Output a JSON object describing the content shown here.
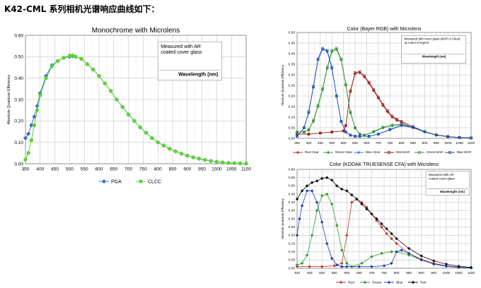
{
  "heading": "K42-CML 系列相机光谱响应曲线如下：",
  "chart_data": [
    {
      "type": "line",
      "title": "Monochrome with Microlens",
      "ylabel": "Absolute Quantum Efficiency",
      "xlabel": "",
      "ylim": [
        0,
        0.6
      ],
      "xlim": [
        350,
        1100
      ],
      "yticks": [
        "0.00",
        "0.10",
        "0.20",
        "0.30",
        "0.40",
        "0.50",
        "0.60"
      ],
      "xticks": [
        "350",
        "400",
        "450",
        "500",
        "550",
        "600",
        "650",
        "700",
        "750",
        "800",
        "850",
        "900",
        "950",
        "1000",
        "1050",
        "1100"
      ],
      "annotation_lines": [
        "Measured with AR",
        "coated cover glass"
      ],
      "wavelength_label": "Wavelength (nm)",
      "legend": "bottom",
      "grid": true,
      "series": [
        {
          "name": "PGA",
          "color": "#3a6fc4",
          "marker": "diamond",
          "x": [
            350,
            360,
            370,
            380,
            390,
            400,
            420,
            440,
            460,
            480,
            500,
            510,
            520,
            540,
            560,
            580,
            600,
            620,
            640,
            660,
            680,
            700,
            720,
            740,
            760,
            780,
            800,
            820,
            840,
            860,
            880,
            900,
            920,
            940,
            960,
            980,
            1000,
            1020,
            1040,
            1060,
            1080,
            1100
          ],
          "y": [
            0.12,
            0.14,
            0.18,
            0.22,
            0.27,
            0.33,
            0.41,
            0.46,
            0.48,
            0.495,
            0.5,
            0.503,
            0.5,
            0.49,
            0.465,
            0.44,
            0.41,
            0.375,
            0.34,
            0.3,
            0.265,
            0.23,
            0.2,
            0.17,
            0.145,
            0.12,
            0.1,
            0.085,
            0.07,
            0.058,
            0.047,
            0.038,
            0.03,
            0.024,
            0.018,
            0.013,
            0.009,
            0.006,
            0.004,
            0.003,
            0.002,
            0.001
          ]
        },
        {
          "name": "CLCC",
          "color": "#5fd13a",
          "marker": "circle",
          "x": [
            350,
            360,
            370,
            380,
            390,
            400,
            420,
            440,
            460,
            480,
            500,
            510,
            520,
            540,
            560,
            580,
            600,
            620,
            640,
            660,
            680,
            700,
            720,
            740,
            760,
            780,
            800,
            820,
            840,
            860,
            880,
            900,
            920,
            940,
            960,
            980,
            1000,
            1020,
            1040,
            1060,
            1080,
            1100
          ],
          "y": [
            0.02,
            0.05,
            0.11,
            0.18,
            0.25,
            0.32,
            0.4,
            0.455,
            0.48,
            0.495,
            0.505,
            0.506,
            0.5,
            0.49,
            0.465,
            0.44,
            0.41,
            0.375,
            0.34,
            0.3,
            0.265,
            0.23,
            0.2,
            0.17,
            0.145,
            0.12,
            0.1,
            0.085,
            0.07,
            0.058,
            0.047,
            0.038,
            0.03,
            0.024,
            0.018,
            0.013,
            0.009,
            0.006,
            0.004,
            0.003,
            0.002,
            0.001
          ]
        }
      ]
    },
    {
      "type": "line",
      "title": "Color (Bayer RGB) with Microlens",
      "ylabel": "Absolute Quantum Efficiency",
      "xlabel": "",
      "ylim": [
        0,
        0.5
      ],
      "xlim": [
        350,
        1100
      ],
      "yticks": [
        "0.00",
        "0.05",
        "0.10",
        "0.15",
        "0.20",
        "0.25",
        "0.30",
        "0.35",
        "0.40",
        "0.45",
        "0.50"
      ],
      "xticks": [
        "350",
        "400",
        "450",
        "500",
        "550",
        "600",
        "650",
        "700",
        "750",
        "800",
        "850",
        "900",
        "950",
        "1000",
        "1050",
        "1100"
      ],
      "annotation_lines": [
        "Measured with cover glass (MAR or Clear)",
        "as noted in legend"
      ],
      "wavelength_label": "Wavelength (nm)",
      "legend": "bottom",
      "grid": true,
      "series": [
        {
          "name": "Red Clear",
          "color": "#c0392b",
          "marker": "diamond",
          "x": [
            350,
            400,
            450,
            500,
            550,
            560,
            580,
            600,
            620,
            640,
            660,
            680,
            700,
            720,
            740,
            760,
            780,
            800,
            850,
            900,
            950,
            1000,
            1050,
            1100
          ],
          "y": [
            0.02,
            0.02,
            0.025,
            0.03,
            0.035,
            0.06,
            0.22,
            0.305,
            0.31,
            0.29,
            0.26,
            0.225,
            0.19,
            0.155,
            0.125,
            0.1,
            0.085,
            0.075,
            0.05,
            0.03,
            0.015,
            0.008,
            0.004,
            0.002
          ]
        },
        {
          "name": "Green Clear",
          "color": "#2ca02c",
          "marker": "diamond",
          "x": [
            350,
            380,
            400,
            420,
            440,
            460,
            480,
            500,
            520,
            540,
            560,
            580,
            600,
            620,
            640,
            680,
            720,
            760,
            800,
            850,
            900,
            950,
            1000,
            1050,
            1100
          ],
          "y": [
            0.03,
            0.03,
            0.04,
            0.08,
            0.15,
            0.23,
            0.33,
            0.41,
            0.42,
            0.37,
            0.25,
            0.12,
            0.05,
            0.02,
            0.015,
            0.03,
            0.05,
            0.06,
            0.065,
            0.05,
            0.03,
            0.015,
            0.008,
            0.004,
            0.002
          ]
        },
        {
          "name": "Blue Clear",
          "color": "#2e86de",
          "marker": "diamond",
          "x": [
            350,
            380,
            400,
            420,
            440,
            460,
            480,
            500,
            520,
            540,
            560,
            580,
            600,
            620,
            660,
            700,
            750,
            800,
            850,
            900,
            950,
            1000,
            1050,
            1100
          ],
          "y": [
            0.01,
            0.05,
            0.12,
            0.24,
            0.37,
            0.42,
            0.41,
            0.33,
            0.2,
            0.08,
            0.03,
            0.015,
            0.01,
            0.01,
            0.01,
            0.02,
            0.04,
            0.06,
            0.05,
            0.03,
            0.015,
            0.008,
            0.004,
            0.002
          ]
        },
        {
          "name": "Red MAR",
          "color": "#8b1a1a",
          "marker": "square",
          "x": [
            350,
            400,
            450,
            500,
            550,
            560,
            580,
            600,
            620,
            640,
            660,
            680,
            700,
            720,
            740,
            760,
            780,
            800,
            850,
            900,
            950,
            1000,
            1050,
            1100
          ],
          "y": [
            0.02,
            0.02,
            0.025,
            0.03,
            0.035,
            0.06,
            0.225,
            0.31,
            0.315,
            0.295,
            0.265,
            0.23,
            0.195,
            0.16,
            0.13,
            0.105,
            0.09,
            0.08,
            0.055,
            0.032,
            0.016,
            0.009,
            0.004,
            0.002
          ]
        },
        {
          "name": "Green MAR",
          "color": "#3c8d3c",
          "marker": "square",
          "x": [
            350,
            380,
            400,
            420,
            440,
            460,
            480,
            500,
            520,
            540,
            560,
            580,
            600,
            620,
            640,
            680,
            720,
            760,
            800,
            850,
            900,
            950,
            1000,
            1050,
            1100
          ],
          "y": [
            0.03,
            0.03,
            0.04,
            0.085,
            0.155,
            0.235,
            0.335,
            0.415,
            0.425,
            0.375,
            0.255,
            0.125,
            0.05,
            0.02,
            0.015,
            0.032,
            0.052,
            0.062,
            0.067,
            0.052,
            0.032,
            0.016,
            0.008,
            0.004,
            0.002
          ]
        },
        {
          "name": "Blue MAR",
          "color": "#1f3fb4",
          "marker": "square",
          "x": [
            350,
            380,
            400,
            420,
            440,
            460,
            480,
            500,
            520,
            540,
            560,
            580,
            600,
            620,
            660,
            700,
            750,
            800,
            850,
            900,
            950,
            1000,
            1050,
            1100
          ],
          "y": [
            0.01,
            0.05,
            0.125,
            0.245,
            0.375,
            0.425,
            0.415,
            0.335,
            0.2,
            0.08,
            0.03,
            0.015,
            0.01,
            0.01,
            0.01,
            0.02,
            0.042,
            0.062,
            0.052,
            0.032,
            0.016,
            0.008,
            0.004,
            0.002
          ]
        }
      ]
    },
    {
      "type": "line",
      "title": "Color (KODAK TRUESENSE CFA) with Microlens",
      "ylabel": "Absolute Quantum Efficiency",
      "xlabel": "",
      "ylim": [
        0,
        0.6
      ],
      "xlim": [
        400,
        1100
      ],
      "yticks": [
        "0.00",
        "0.05",
        "0.10",
        "0.15",
        "0.20",
        "0.25",
        "0.30",
        "0.35",
        "0.40",
        "0.45",
        "0.50",
        "0.55",
        "0.60"
      ],
      "xticks": [
        "400",
        "450",
        "500",
        "550",
        "600",
        "650",
        "700",
        "750",
        "800",
        "850",
        "900",
        "950",
        "1000",
        "1050",
        "1100"
      ],
      "annotation_lines": [
        "Measured with AR",
        "coated cover glass"
      ],
      "wavelength_label": "Wavelength (nm)",
      "legend": "bottom",
      "grid": true,
      "series": [
        {
          "name": "Red",
          "color": "#c0392b",
          "marker": "diamond",
          "x": [
            400,
            450,
            500,
            550,
            580,
            600,
            620,
            640,
            660,
            680,
            700,
            720,
            740,
            760,
            780,
            800,
            850,
            900,
            950,
            1000,
            1050,
            1100
          ],
          "y": [
            0.01,
            0.01,
            0.01,
            0.015,
            0.03,
            0.2,
            0.4,
            0.42,
            0.4,
            0.37,
            0.33,
            0.29,
            0.25,
            0.21,
            0.18,
            0.15,
            0.09,
            0.055,
            0.03,
            0.015,
            0.007,
            0.003
          ]
        },
        {
          "name": "Green",
          "color": "#2ca02c",
          "marker": "diamond",
          "x": [
            400,
            420,
            440,
            460,
            480,
            500,
            520,
            540,
            560,
            580,
            600,
            620,
            660,
            700,
            740,
            780,
            800,
            850,
            900,
            950,
            1000,
            1050,
            1100
          ],
          "y": [
            0.02,
            0.03,
            0.08,
            0.2,
            0.35,
            0.44,
            0.45,
            0.39,
            0.26,
            0.11,
            0.03,
            0.01,
            0.03,
            0.07,
            0.09,
            0.1,
            0.1,
            0.08,
            0.05,
            0.025,
            0.012,
            0.005,
            0.002
          ]
        },
        {
          "name": "Blue",
          "color": "#1f3fb4",
          "marker": "diamond",
          "x": [
            400,
            410,
            420,
            440,
            460,
            480,
            500,
            520,
            540,
            560,
            580,
            600,
            650,
            700,
            750,
            780,
            800,
            820,
            850,
            900,
            950,
            1000,
            1050,
            1100
          ],
          "y": [
            0.2,
            0.3,
            0.38,
            0.47,
            0.47,
            0.4,
            0.28,
            0.15,
            0.06,
            0.02,
            0.01,
            0.01,
            0.01,
            0.01,
            0.015,
            0.03,
            0.1,
            0.11,
            0.09,
            0.05,
            0.025,
            0.012,
            0.005,
            0.002
          ]
        },
        {
          "name": "Pan",
          "color": "#111111",
          "marker": "diamond",
          "x": [
            400,
            420,
            440,
            460,
            480,
            500,
            520,
            540,
            560,
            580,
            600,
            620,
            640,
            660,
            680,
            700,
            720,
            740,
            760,
            780,
            800,
            850,
            900,
            950,
            1000,
            1050,
            1100
          ],
          "y": [
            0.42,
            0.47,
            0.5,
            0.52,
            0.53,
            0.545,
            0.55,
            0.535,
            0.5,
            0.48,
            0.47,
            0.445,
            0.42,
            0.39,
            0.36,
            0.33,
            0.3,
            0.27,
            0.24,
            0.21,
            0.18,
            0.12,
            0.075,
            0.045,
            0.025,
            0.012,
            0.005
          ]
        }
      ]
    }
  ]
}
